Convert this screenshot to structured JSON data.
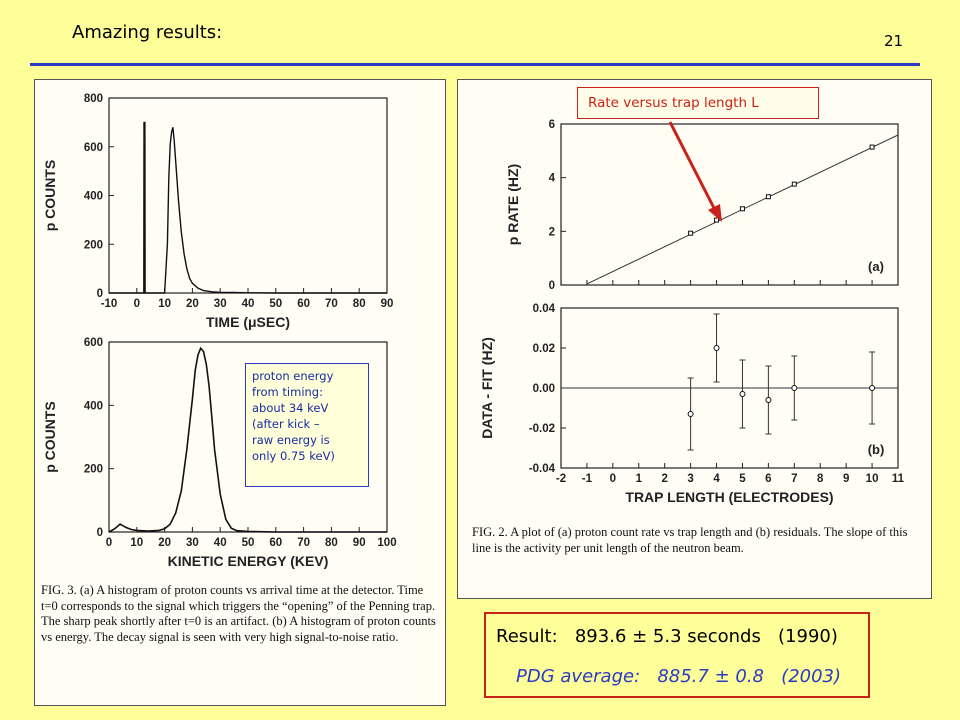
{
  "slide": {
    "title": "Amazing results:",
    "page_number": "21"
  },
  "left_figure": {
    "caption": "FIG. 3. (a) A histogram of proton counts vs arrival time at the detector. Time t=0 corresponds to the signal which triggers the “opening” of the Penning trap. The sharp peak shortly after t=0 is an artifact. (b) A histogram of proton counts vs energy. The decay signal is seen with very high signal-to-noise ratio.",
    "note": "proton energy\nfrom timing:\nabout 34 keV\n(after kick –\nraw energy is\nonly 0.75 keV)"
  },
  "right_figure": {
    "caption": "FIG. 2. A plot of (a) proton count rate vs trap length and (b) residuals. The slope of this line is the activity per unit length of the neutron beam.",
    "callout": "Rate versus trap length L"
  },
  "result": {
    "result_label": "Result:",
    "result_value": "893.6 ± 5.3 seconds",
    "result_year": "(1990)",
    "pdg_label": "PDG average:",
    "pdg_value": "885.7 ± 0.8",
    "pdg_year": "(2003)"
  },
  "chart_data": [
    {
      "type": "line",
      "panel": "time histogram",
      "xlabel": "TIME (μSEC)",
      "ylabel": "p COUNTS",
      "xlim": [
        -10,
        90
      ],
      "ylim": [
        0,
        800
      ],
      "xticks": [
        -10,
        0,
        10,
        20,
        30,
        40,
        50,
        60,
        70,
        80,
        90
      ],
      "yticks": [
        0,
        200,
        400,
        600,
        800
      ],
      "x": [
        -10,
        2.5,
        2.6,
        2.9,
        3.0,
        10,
        11,
        11.5,
        12,
        12.5,
        13,
        13.5,
        14,
        15,
        16,
        17,
        18,
        19,
        20,
        22,
        24,
        27,
        30,
        35,
        40,
        50,
        60,
        70,
        80,
        90
      ],
      "y": [
        0,
        0,
        700,
        700,
        0,
        0,
        200,
        470,
        610,
        660,
        680,
        620,
        540,
        380,
        250,
        160,
        100,
        60,
        40,
        20,
        10,
        5,
        3,
        2,
        1,
        0,
        0,
        0,
        0,
        0
      ]
    },
    {
      "type": "line",
      "panel": "energy histogram",
      "xlabel": "KINETIC ENERGY (KEV)",
      "ylabel": "p COUNTS",
      "xlim": [
        0,
        100
      ],
      "ylim": [
        0,
        600
      ],
      "xticks": [
        0,
        10,
        20,
        30,
        40,
        50,
        60,
        70,
        80,
        90,
        100
      ],
      "yticks": [
        0,
        200,
        400,
        600
      ],
      "x": [
        0,
        2,
        4,
        6,
        8,
        10,
        14,
        18,
        20,
        22,
        24,
        26,
        28,
        30,
        31,
        32,
        33,
        34,
        35,
        36,
        37,
        38,
        40,
        42,
        44,
        46,
        50,
        60,
        70,
        80,
        90,
        100
      ],
      "y": [
        0,
        10,
        25,
        15,
        8,
        5,
        3,
        5,
        10,
        25,
        60,
        130,
        260,
        420,
        510,
        560,
        580,
        570,
        530,
        460,
        360,
        260,
        120,
        40,
        12,
        4,
        2,
        0,
        0,
        0,
        0,
        0
      ]
    },
    {
      "type": "scatter",
      "panel": "(a)",
      "ylabel": "p RATE (HZ)",
      "xlim": [
        -2,
        11
      ],
      "ylim": [
        0,
        6
      ],
      "xticks": [
        -2,
        -1,
        0,
        1,
        2,
        3,
        4,
        5,
        6,
        7,
        8,
        9,
        10,
        11
      ],
      "yticks": [
        0,
        2,
        4,
        6
      ],
      "x": [
        3,
        4,
        5,
        6,
        7,
        10
      ],
      "y": [
        1.93,
        2.42,
        2.84,
        3.29,
        3.76,
        5.14
      ],
      "fit_line": {
        "x": [
          -1,
          11
        ],
        "y": [
          0.04,
          5.59
        ]
      }
    },
    {
      "type": "scatter",
      "panel": "(b)",
      "xlabel": "TRAP LENGTH (ELECTRODES)",
      "ylabel": "DATA - FIT (HZ)",
      "xlim": [
        -2,
        11
      ],
      "ylim": [
        -0.04,
        0.04
      ],
      "xticks": [
        -2,
        -1,
        0,
        1,
        2,
        3,
        4,
        5,
        6,
        7,
        8,
        9,
        10,
        11
      ],
      "yticks": [
        -0.04,
        -0.02,
        0.0,
        0.02,
        0.04
      ],
      "x": [
        3,
        4,
        5,
        6,
        7,
        10
      ],
      "y": [
        -0.013,
        0.02,
        -0.003,
        -0.006,
        0.0,
        0.0
      ],
      "yerr": [
        0.018,
        0.017,
        0.017,
        0.017,
        0.016,
        0.018
      ]
    }
  ]
}
